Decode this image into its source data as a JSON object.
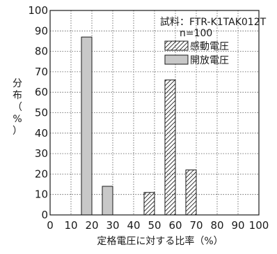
{
  "chart_data": {
    "type": "bar",
    "title": "",
    "xlabel": "定格電圧に対する比率（%）",
    "ylabel_chars": [
      "分",
      "布",
      "（",
      "%",
      "）"
    ],
    "xlim": [
      0,
      100
    ],
    "ylim": [
      0,
      100
    ],
    "x_ticks": [
      0,
      10,
      20,
      30,
      40,
      50,
      60,
      70,
      80,
      90,
      100
    ],
    "y_ticks": [
      0,
      10,
      20,
      30,
      40,
      50,
      60,
      70,
      80,
      90,
      100
    ],
    "grid": true,
    "bin_width": 5,
    "annotations": {
      "sample": "試料：FTR-K1TAK012T",
      "n": "n=100"
    },
    "legend_position": "top-right",
    "series": [
      {
        "name": "感動電圧",
        "pattern": "hatched",
        "bins": [
          {
            "x_start": 45,
            "value": 11
          },
          {
            "x_start": 55,
            "value": 66
          },
          {
            "x_start": 65,
            "value": 22
          }
        ]
      },
      {
        "name": "開放電圧",
        "pattern": "solid",
        "color": "#c8c8c8",
        "bins": [
          {
            "x_start": 15,
            "value": 87
          },
          {
            "x_start": 25,
            "value": 14
          }
        ]
      }
    ]
  }
}
